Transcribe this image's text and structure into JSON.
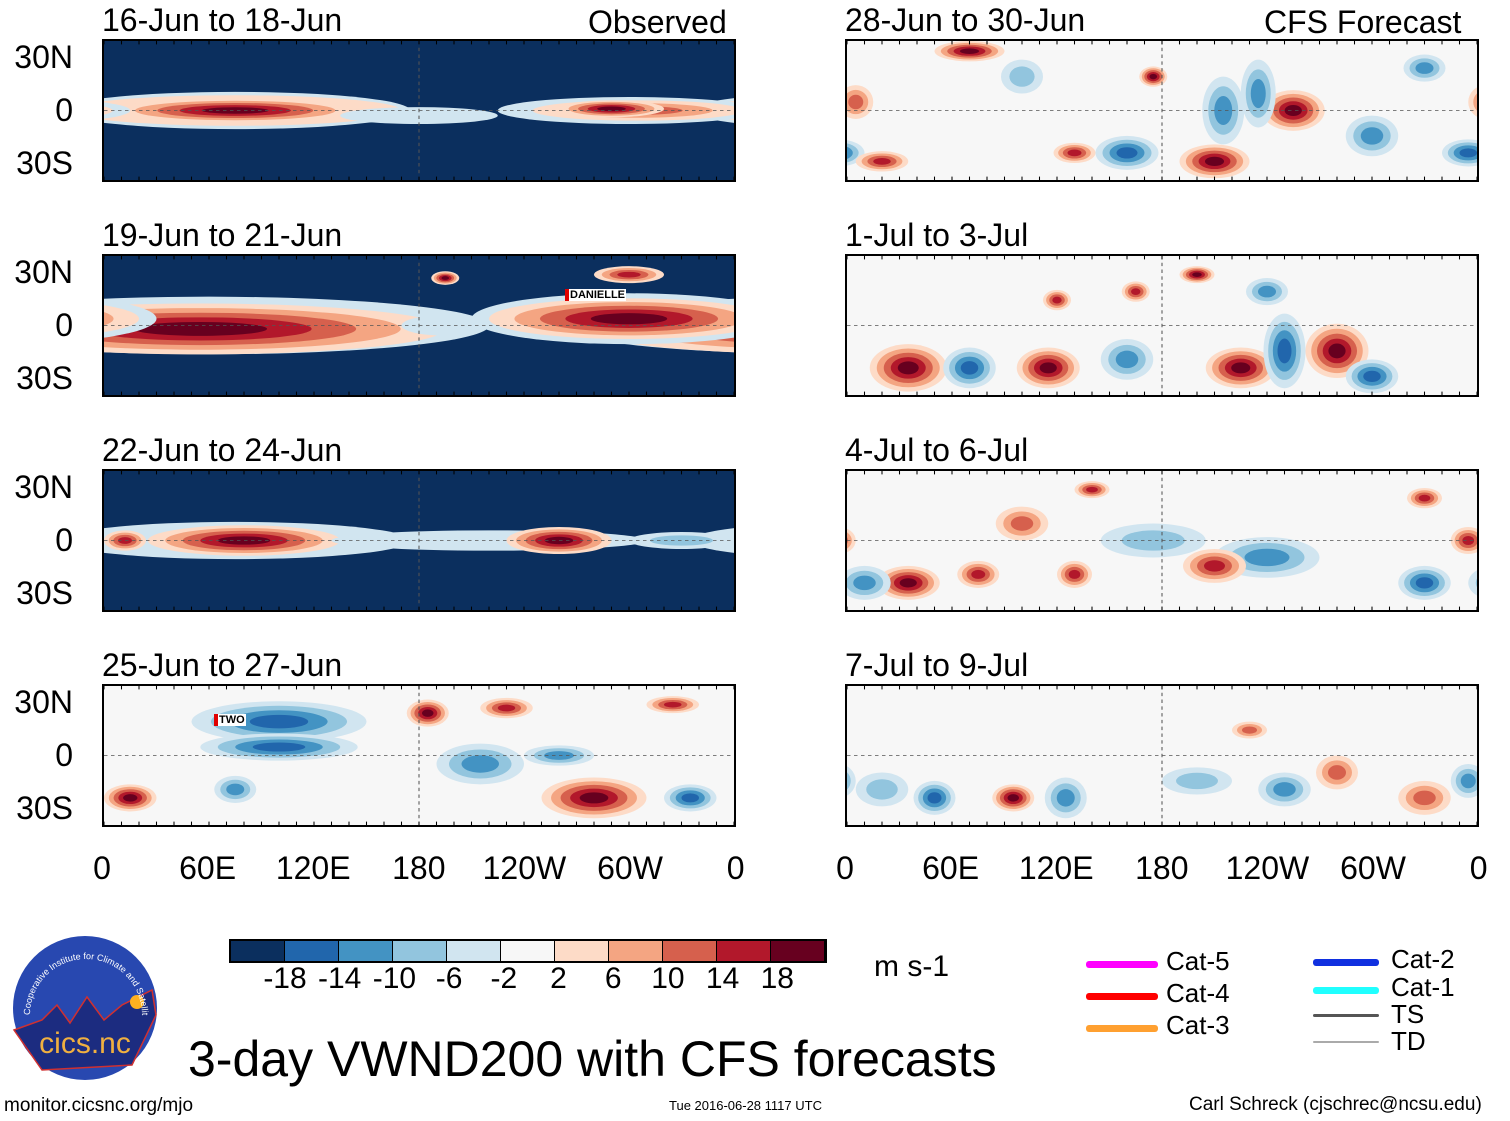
{
  "title": "3-day VWND200 with CFS forecasts",
  "left_label": "Observed",
  "right_label": "CFS Forecast",
  "panels_left": [
    {
      "title": "16-Jun to 18-Jun"
    },
    {
      "title": "19-Jun to 21-Jun",
      "storm": "DANIELLE"
    },
    {
      "title": "22-Jun to 24-Jun"
    },
    {
      "title": "25-Jun to 27-Jun",
      "storm": "TWO"
    }
  ],
  "panels_right": [
    {
      "title": "28-Jun to 30-Jun"
    },
    {
      "title": "1-Jul to 3-Jul"
    },
    {
      "title": "4-Jul to 6-Jul"
    },
    {
      "title": "7-Jul to 9-Jul"
    }
  ],
  "lat_labels": [
    "30N",
    "0",
    "30S"
  ],
  "lon_labels": [
    "0",
    "60E",
    "120E",
    "180",
    "120W",
    "60W",
    "0"
  ],
  "colorbar": {
    "colors": [
      "#0b2f5e",
      "#2166ac",
      "#4393c3",
      "#92c5de",
      "#d1e5f0",
      "#f7f7f7",
      "#fddbc7",
      "#f4a582",
      "#d6604d",
      "#b2182b",
      "#67001f"
    ],
    "labels": [
      "-18",
      "-14",
      "-10",
      "-6",
      "-2",
      "2",
      "6",
      "10",
      "14",
      "18"
    ],
    "units": "m s-1"
  },
  "legend": [
    {
      "label": "Cat-5",
      "color": "#ff00ff"
    },
    {
      "label": "Cat-4",
      "color": "#ff0000"
    },
    {
      "label": "Cat-3",
      "color": "#ffa030"
    },
    {
      "label": "Cat-2",
      "color": "#1030e0"
    },
    {
      "label": "Cat-1",
      "color": "#20ffff"
    },
    {
      "label": "TS",
      "color": "#555555"
    },
    {
      "label": "TD",
      "color": "#aaaaaa"
    }
  ],
  "logo": {
    "name": "cics.nc",
    "ring_text": "Cooperative Institute for Climate and Satellites"
  },
  "footer": {
    "left": "monitor.cicsnc.org/mjo",
    "center": "Tue 2016-06-28 1117 UTC",
    "right": "Carl Schreck (cjschrec@ncsu.edu)"
  }
}
